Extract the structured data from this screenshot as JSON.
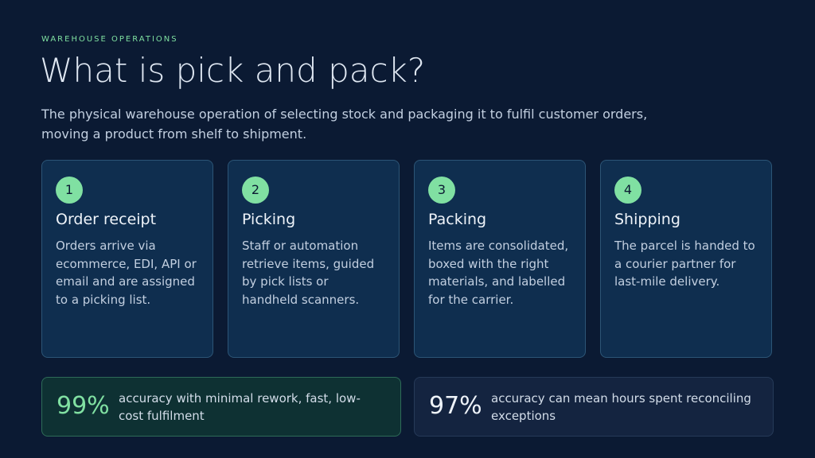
{
  "header": {
    "eyebrow": "WAREHOUSE OPERATIONS",
    "title": "What is pick and pack?",
    "subtitle": "The physical warehouse operation of selecting stock and packaging it to fulfil customer orders, moving a product from shelf to shipment."
  },
  "steps": [
    {
      "number": "1",
      "title": "Order receipt",
      "text": "Orders arrive via ecommerce, EDI, API or email and are assigned to a picking list."
    },
    {
      "number": "2",
      "title": "Picking",
      "text": "Staff or automation retrieve items, guided by pick lists or handheld scanners."
    },
    {
      "number": "3",
      "title": "Packing",
      "text": "Items are consolidated, boxed with the right materials, and labelled for the carrier."
    },
    {
      "number": "4",
      "title": "Shipping",
      "text": "The parcel is handed to a courier partner for last-mile delivery."
    }
  ],
  "stats": [
    {
      "value": "99%",
      "text": "accuracy with minimal rework, fast, low-cost fulfilment"
    },
    {
      "value": "97%",
      "text": "accuracy can mean hours spent reconciling exceptions"
    }
  ]
}
